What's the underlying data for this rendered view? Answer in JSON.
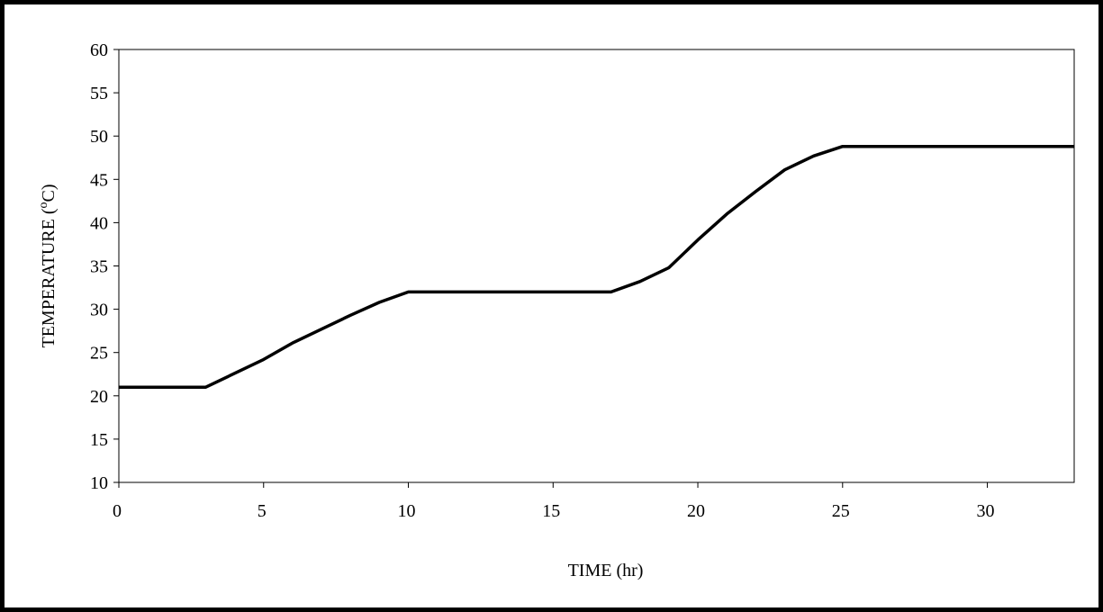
{
  "chart_data": {
    "type": "line",
    "title": "",
    "xlabel": "TIME (hr)",
    "ylabel": {
      "prefix": "TEMPERATURE (",
      "superscript": "o",
      "suffix": "C)"
    },
    "xlim": [
      0,
      33
    ],
    "ylim": [
      10,
      60
    ],
    "xticks": [
      0,
      5,
      10,
      15,
      20,
      25,
      30
    ],
    "yticks": [
      10,
      15,
      20,
      25,
      30,
      35,
      40,
      45,
      50,
      55,
      60
    ],
    "grid": false,
    "legend": "none",
    "series": [
      {
        "color": "#000000",
        "x": [
          0,
          3,
          5,
          6,
          7,
          8,
          9,
          10,
          17,
          18,
          19,
          20,
          21,
          22,
          23,
          24,
          25,
          33
        ],
        "y": [
          21,
          21,
          24.2,
          26.1,
          27.7,
          29.3,
          30.8,
          32,
          32,
          33.2,
          34.8,
          38,
          41,
          43.6,
          46.1,
          47.7,
          48.8,
          48.8
        ]
      }
    ]
  }
}
